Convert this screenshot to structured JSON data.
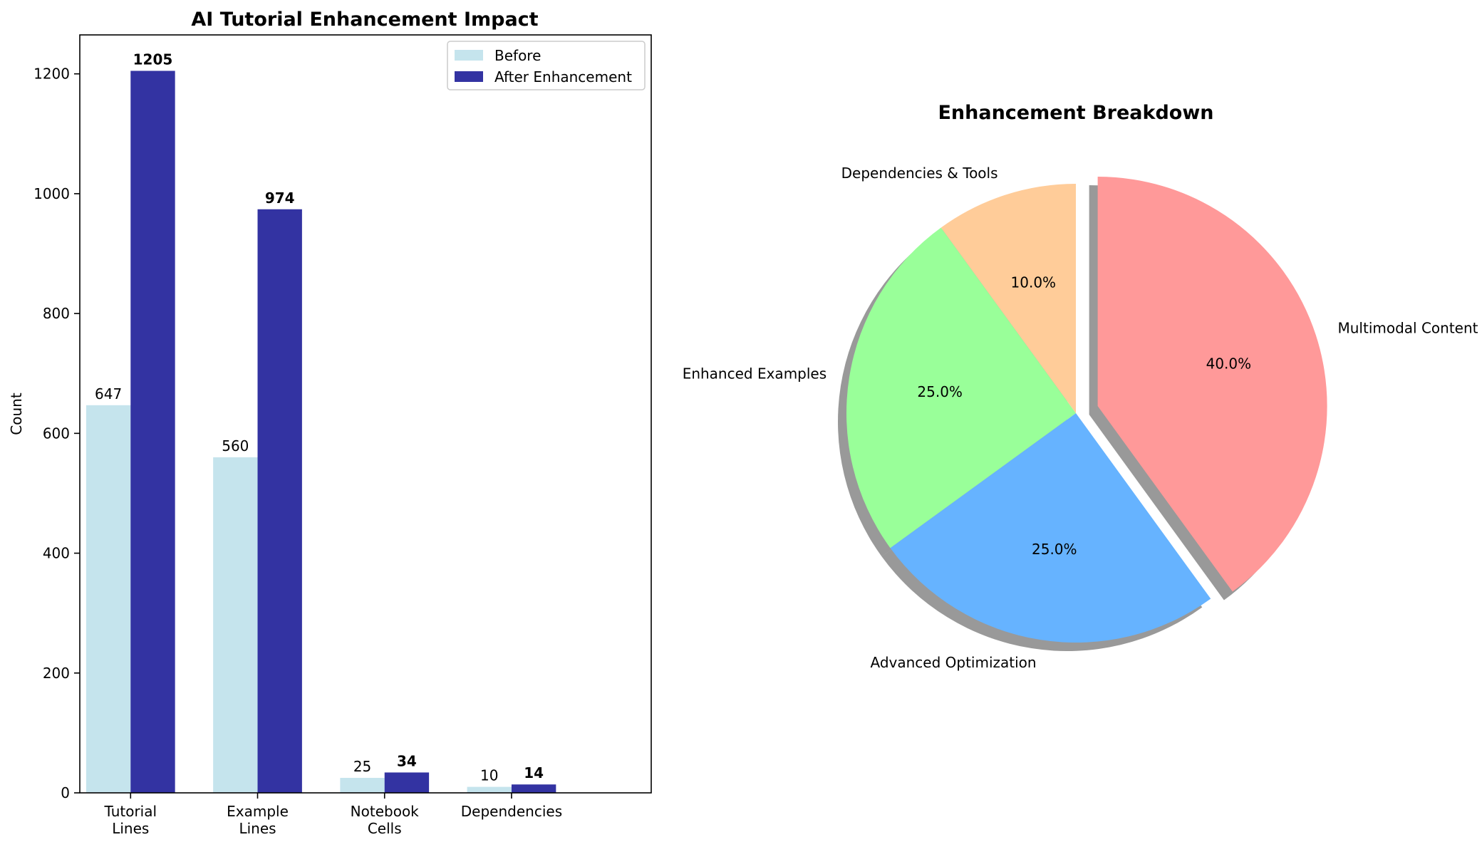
{
  "chart_data": [
    {
      "type": "bar",
      "title": "AI Tutorial Enhancement Impact",
      "xlabel": "",
      "ylabel": "Count",
      "categories": [
        "Tutorial\nLines",
        "Example\nLines",
        "Notebook\nCells",
        "Dependencies"
      ],
      "ylim": [
        0,
        1265
      ],
      "yticks": [
        0,
        200,
        400,
        600,
        800,
        1000,
        1200
      ],
      "legend_position": "top-right",
      "grid": false,
      "series": [
        {
          "name": "Before",
          "values": [
            647,
            560,
            25,
            10
          ],
          "color": "#add8e6",
          "opacity": 0.7,
          "label_weight": "normal"
        },
        {
          "name": "After Enhancement",
          "values": [
            1205,
            974,
            34,
            14
          ],
          "color": "#00008b",
          "opacity": 0.8,
          "label_weight": "bold"
        }
      ]
    },
    {
      "type": "pie",
      "title": "Enhancement Breakdown",
      "start_angle": 90,
      "counterclock": false,
      "shadow": true,
      "slices": [
        {
          "label": "Multimodal Content",
          "value": 40,
          "pct": "40.0%",
          "color": "#ff9999",
          "explode": 0.1
        },
        {
          "label": "Advanced Optimization",
          "value": 25,
          "pct": "25.0%",
          "color": "#66b3ff",
          "explode": 0
        },
        {
          "label": "Enhanced Examples",
          "value": 25,
          "pct": "25.0%",
          "color": "#99ff99",
          "explode": 0
        },
        {
          "label": "Dependencies & Tools",
          "value": 10,
          "pct": "10.0%",
          "color": "#ffcc99",
          "explode": 0
        }
      ]
    }
  ]
}
